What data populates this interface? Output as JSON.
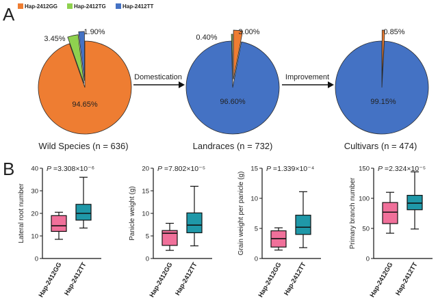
{
  "panel_labels": [
    "A",
    "B"
  ],
  "colors": {
    "gg": "#ee7d32",
    "tg": "#8fd14f",
    "tt": "#4472c4",
    "box_gg": "#f0709a",
    "box_tt": "#1f98a8"
  },
  "chart_data": [
    {
      "type": "pie",
      "title": "Wild Species (n = 636)",
      "legend": [
        "Hap-2412GG",
        "Hap-2412TG",
        "Hap-2412TT"
      ],
      "legend_position": "top-left",
      "categories": [
        "Hap-2412GG",
        "Hap-2412TG",
        "Hap-2412TT"
      ],
      "values": [
        94.65,
        3.45,
        1.9
      ],
      "labels": [
        "94.65%",
        "3.45%",
        "1.90%"
      ]
    },
    {
      "type": "pie",
      "title": "Landraces (n = 732)",
      "categories": [
        "Hap-2412GG",
        "Hap-2412TG",
        "Hap-2412TT"
      ],
      "values": [
        3.0,
        0.4,
        96.6
      ],
      "labels": [
        "3.00%",
        "0.40%",
        "96.60%"
      ]
    },
    {
      "type": "pie",
      "title": "Cultivars (n = 474)",
      "categories": [
        "Hap-2412GG",
        "Hap-2412TG",
        "Hap-2412TT"
      ],
      "values": [
        0.85,
        0,
        99.15
      ],
      "labels": [
        "0.85%",
        "",
        "99.15%"
      ]
    },
    {
      "type": "box",
      "ylabel": "Lateral root number",
      "pvalue": "3.308×10⁻⁶",
      "categories": [
        "Hap-2412GG",
        "Hap-2412TT"
      ],
      "ylim": [
        0,
        40
      ],
      "yticks": [
        0,
        10,
        20,
        30,
        40
      ],
      "boxes": [
        {
          "min": 8.5,
          "q1": 12,
          "median": 14.5,
          "q3": 19,
          "max": 20.5
        },
        {
          "min": 13.5,
          "q1": 17,
          "median": 20,
          "q3": 24,
          "max": 36
        }
      ]
    },
    {
      "type": "box",
      "ylabel": "Panicle weight (g)",
      "pvalue": "7.802×10⁻⁵",
      "categories": [
        "Hap-2412GG",
        "Hap-2412TT"
      ],
      "ylim": [
        0,
        20
      ],
      "yticks": [
        0,
        5,
        10,
        15,
        20
      ],
      "boxes": [
        {
          "min": 1.8,
          "q1": 2.9,
          "median": 5.6,
          "q3": 6.2,
          "max": 7.8
        },
        {
          "min": 2.8,
          "q1": 5.7,
          "median": 7.4,
          "q3": 10.1,
          "max": 16
        }
      ]
    },
    {
      "type": "box",
      "ylabel": "Grain weight per panicle (g)",
      "pvalue": "1.339×10⁻⁴",
      "categories": [
        "Hap-2412GG",
        "Hap-2412TT"
      ],
      "ylim": [
        0,
        15
      ],
      "yticks": [
        0,
        5,
        10,
        15
      ],
      "boxes": [
        {
          "min": 1.4,
          "q1": 1.9,
          "median": 3.3,
          "q3": 4.6,
          "max": 5.1
        },
        {
          "min": 1.8,
          "q1": 4.0,
          "median": 5.2,
          "q3": 7.2,
          "max": 11.1
        }
      ]
    },
    {
      "type": "box",
      "ylabel": "Primary branch number",
      "pvalue": "2.324×10⁻⁵",
      "categories": [
        "Hap-2412GG",
        "Hap-2412TT"
      ],
      "ylim": [
        0,
        150
      ],
      "yticks": [
        0,
        50,
        100,
        150
      ],
      "boxes": [
        {
          "min": 42,
          "q1": 58,
          "median": 77,
          "q3": 93,
          "max": 110
        },
        {
          "min": 49,
          "q1": 81,
          "median": 92,
          "q3": 105,
          "max": 144
        }
      ]
    }
  ],
  "arrows": [
    "Domestication",
    "Improvement"
  ]
}
